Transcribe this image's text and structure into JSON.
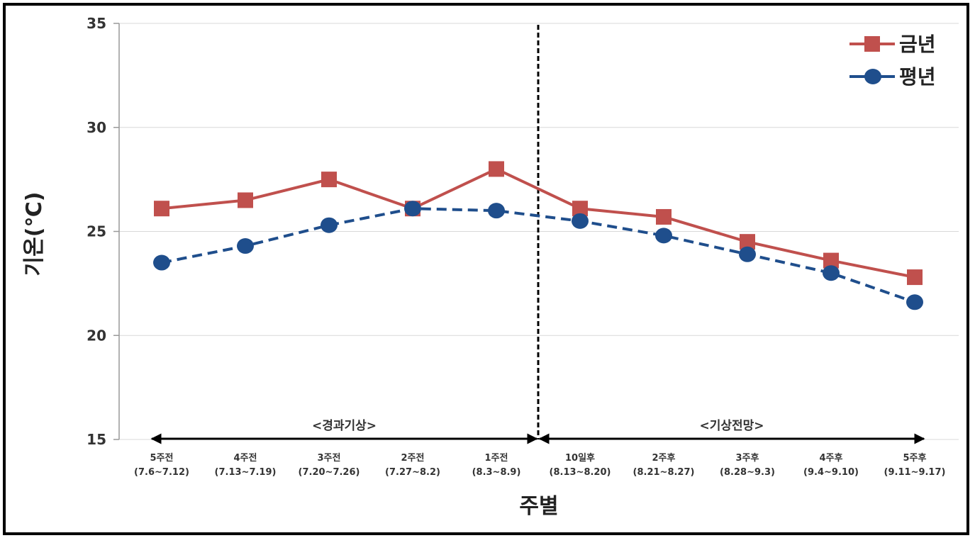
{
  "chart_data": {
    "type": "line",
    "title": "",
    "xlabel": "주별",
    "ylabel": "기온(℃)",
    "ylim": [
      15,
      35
    ],
    "yticks": [
      "15",
      "20",
      "25",
      "30",
      "35"
    ],
    "grid": true,
    "legend_position": "top-right",
    "categories": [
      {
        "line1": "5주전",
        "line2": "(7.6~7.12)"
      },
      {
        "line1": "4주전",
        "line2": "(7.13~7.19)"
      },
      {
        "line1": "3주전",
        "line2": "(7.20~7.26)"
      },
      {
        "line1": "2주전",
        "line2": "(7.27~8.2)"
      },
      {
        "line1": "1주전",
        "line2": "(8.3~8.9)"
      },
      {
        "line1": "10일후",
        "line2": "(8.13~8.20)"
      },
      {
        "line1": "2주후",
        "line2": "(8.21~8.27)"
      },
      {
        "line1": "3주후",
        "line2": "(8.28~9.3)"
      },
      {
        "line1": "4주후",
        "line2": "(9.4~9.10)"
      },
      {
        "line1": "5주후",
        "line2": "(9.11~9.17)"
      }
    ],
    "series": [
      {
        "name": "금년",
        "color": "#c0504d",
        "marker": "square",
        "dash": false,
        "values": [
          26.1,
          26.5,
          27.5,
          26.1,
          28.0,
          26.1,
          25.7,
          24.5,
          23.6,
          22.8
        ]
      },
      {
        "name": "평년",
        "color": "#1f4e8c",
        "marker": "circle",
        "dash": true,
        "values": [
          23.5,
          24.3,
          25.3,
          26.1,
          26.0,
          25.5,
          24.8,
          23.9,
          23.0,
          21.6
        ]
      }
    ],
    "regions": [
      {
        "label": "<경과기상>",
        "from": 0,
        "to": 4
      },
      {
        "label": "<기상전망>",
        "from": 5,
        "to": 9
      }
    ]
  }
}
